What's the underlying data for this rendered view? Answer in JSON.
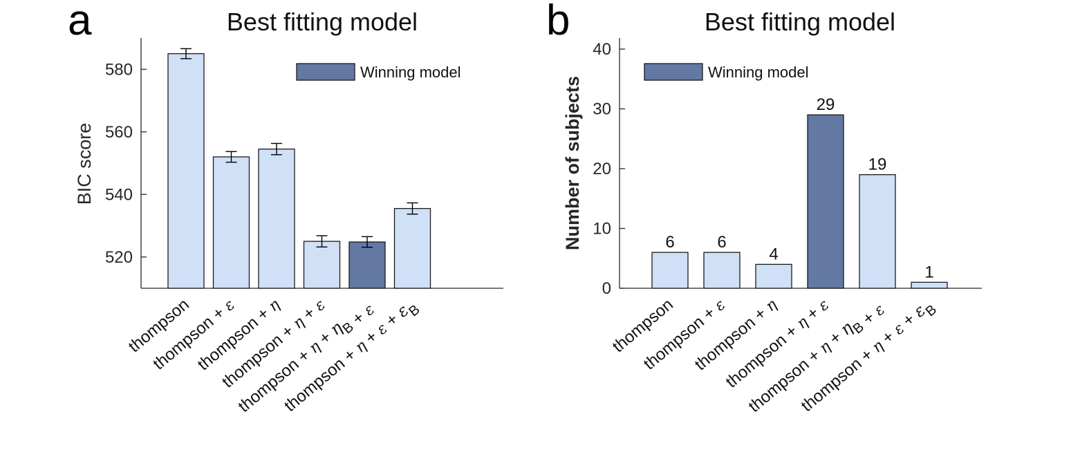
{
  "chart_data": [
    {
      "type": "bar",
      "panel": "a",
      "title": "Best fitting model",
      "xlabel": "",
      "ylabel": "BIC score",
      "ylim": [
        510,
        590
      ],
      "yticks": [
        520,
        540,
        560,
        580
      ],
      "categories": [
        "thompson",
        "thompson + ε",
        "thompson + η",
        "thompson + η + ε",
        "thompson + η + η_B + ε",
        "thompson + η + ε + ε_B"
      ],
      "values": [
        585,
        552,
        554.5,
        525,
        524.8,
        535.5
      ],
      "error": [
        1.6,
        1.7,
        1.8,
        1.8,
        1.7,
        1.8
      ],
      "winning_index": 4,
      "legend": {
        "label": "Winning model",
        "position": "top-right"
      },
      "grid": false
    },
    {
      "type": "bar",
      "panel": "b",
      "title": "Best fitting model",
      "xlabel": "",
      "ylabel": "Number of subjects",
      "ylim": [
        0,
        40
      ],
      "yticks": [
        0,
        10,
        20,
        30,
        40
      ],
      "categories": [
        "thompson",
        "thompson + ε",
        "thompson + η",
        "thompson + η + ε",
        "thompson + η + η_B + ε",
        "thompson + η + ε + ε_B"
      ],
      "values": [
        6,
        6,
        4,
        29,
        19,
        1
      ],
      "data_labels": [
        "6",
        "6",
        "4",
        "29",
        "19",
        "1"
      ],
      "winning_index": 3,
      "legend": {
        "label": "Winning model",
        "position": "top-left"
      },
      "grid": false
    }
  ],
  "colors": {
    "bar": "#cfe0f7",
    "winning": "#6378a3",
    "edge": "#1a1a1a",
    "axis": "#262626"
  }
}
